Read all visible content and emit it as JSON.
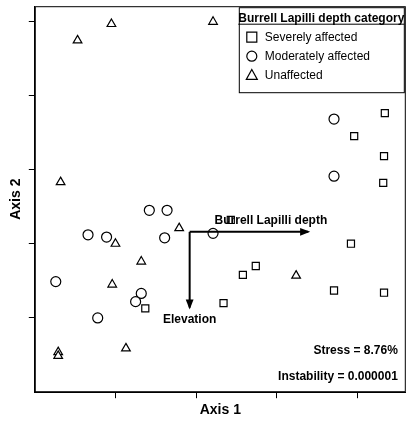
{
  "chart_data": {
    "type": "scatter",
    "x_label": "Axis 1",
    "y_label": "Axis 2",
    "xlim": [
      0,
      4.6
    ],
    "ylim": [
      0,
      5.2
    ],
    "xticks": [
      1,
      2,
      3,
      4
    ],
    "yticks": [
      1,
      2,
      3,
      4,
      5
    ],
    "tick_labels": false,
    "grid": false,
    "legend": "top-right",
    "legend_title": "Burrell Lapilli depth category",
    "series": [
      {
        "name": "Severely affected",
        "marker": "square",
        "color": "#000000",
        "x": [
          4.34,
          3.96,
          4.33,
          4.32,
          2.43,
          3.92,
          2.74,
          2.58,
          2.34,
          3.71,
          4.33,
          1.37
        ],
        "y": [
          3.76,
          3.45,
          3.18,
          2.82,
          2.32,
          2.0,
          1.7,
          1.58,
          1.2,
          1.37,
          1.34,
          1.13
        ]
      },
      {
        "name": "Moderately affected",
        "marker": "circle",
        "color": "#000000",
        "x": [
          3.71,
          3.71,
          1.42,
          1.64,
          1.61,
          2.21,
          0.66,
          0.89,
          0.26,
          1.32,
          1.25,
          0.78
        ],
        "y": [
          3.68,
          2.91,
          2.45,
          2.45,
          2.08,
          2.14,
          2.12,
          2.09,
          1.49,
          1.33,
          1.22,
          1.0
        ]
      },
      {
        "name": "Unaffected",
        "marker": "triangle",
        "color": "#000000",
        "x": [
          0.53,
          0.95,
          2.21,
          0.32,
          1.0,
          1.79,
          1.32,
          0.96,
          3.24,
          1.13,
          0.29,
          0.29
        ],
        "y": [
          4.74,
          4.96,
          4.99,
          2.83,
          2.0,
          2.21,
          1.76,
          1.45,
          1.57,
          0.59,
          0.54,
          0.49
        ]
      }
    ],
    "vectors": [
      {
        "name": "Burrell Lapilli depth",
        "x": [
          1.92,
          3.39
        ],
        "y": [
          2.16,
          2.16
        ]
      },
      {
        "name": "Elevation",
        "x": [
          1.92,
          1.92
        ],
        "y": [
          2.16,
          1.14
        ]
      }
    ],
    "annotations": [
      "Stress = 8.76%",
      "Instability = 0.000001"
    ]
  }
}
